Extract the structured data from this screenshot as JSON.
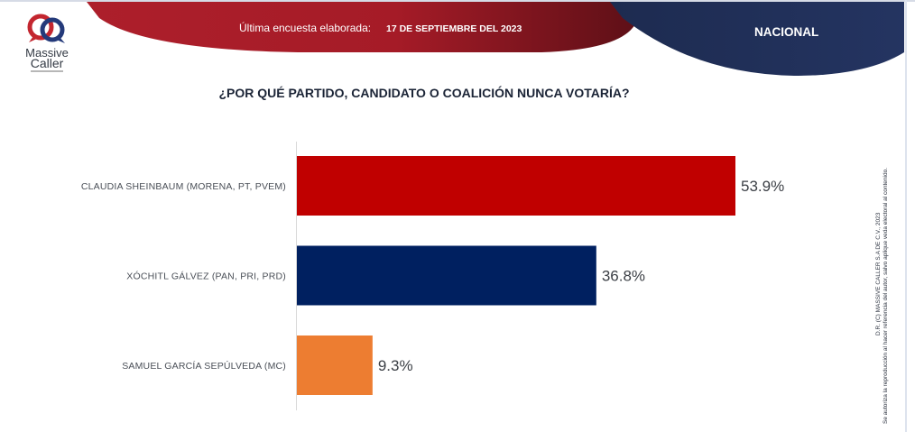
{
  "header": {
    "brand_line1": "Massive",
    "brand_line2": "Caller",
    "survey_label": "Última encuesta elaborada:",
    "survey_date": "17 DE SEPTIEMBRE DEL 2023",
    "region": "NACIONAL"
  },
  "colors": {
    "red_banner": "#b01e2a",
    "navy_banner": "#1f2d55",
    "morena_red": "#c00000",
    "pan_navy": "#002060",
    "mc_orange": "#ed7d31"
  },
  "copyright": {
    "line1": "D.R. (C) MASSIVE CALLER S.A DE C.V., 2023",
    "line2": "Se autoriza la reproducción al hacer referencia del autor, salvo aplique veda electoral al contenido.",
    "line3": ""
  },
  "chart_data": {
    "type": "bar",
    "orientation": "horizontal",
    "title": "¿POR QUÉ PARTIDO, CANDIDATO O COALICIÓN NUNCA VOTARÍA?",
    "categories": [
      "CLAUDIA SHEINBAUM (MORENA, PT, PVEM)",
      "XÓCHITL GÁLVEZ (PAN, PRI, PRD)",
      "SAMUEL GARCÍA SEPÚLVEDA (MC)"
    ],
    "values": [
      53.9,
      36.8,
      9.3
    ],
    "value_labels": [
      "53.9%",
      "36.8%",
      "9.3%"
    ],
    "bar_colors": [
      "#c00000",
      "#002060",
      "#ed7d31"
    ],
    "xlim": [
      0,
      60
    ],
    "xlabel": "",
    "ylabel": "",
    "grid": false,
    "legend": "none"
  }
}
